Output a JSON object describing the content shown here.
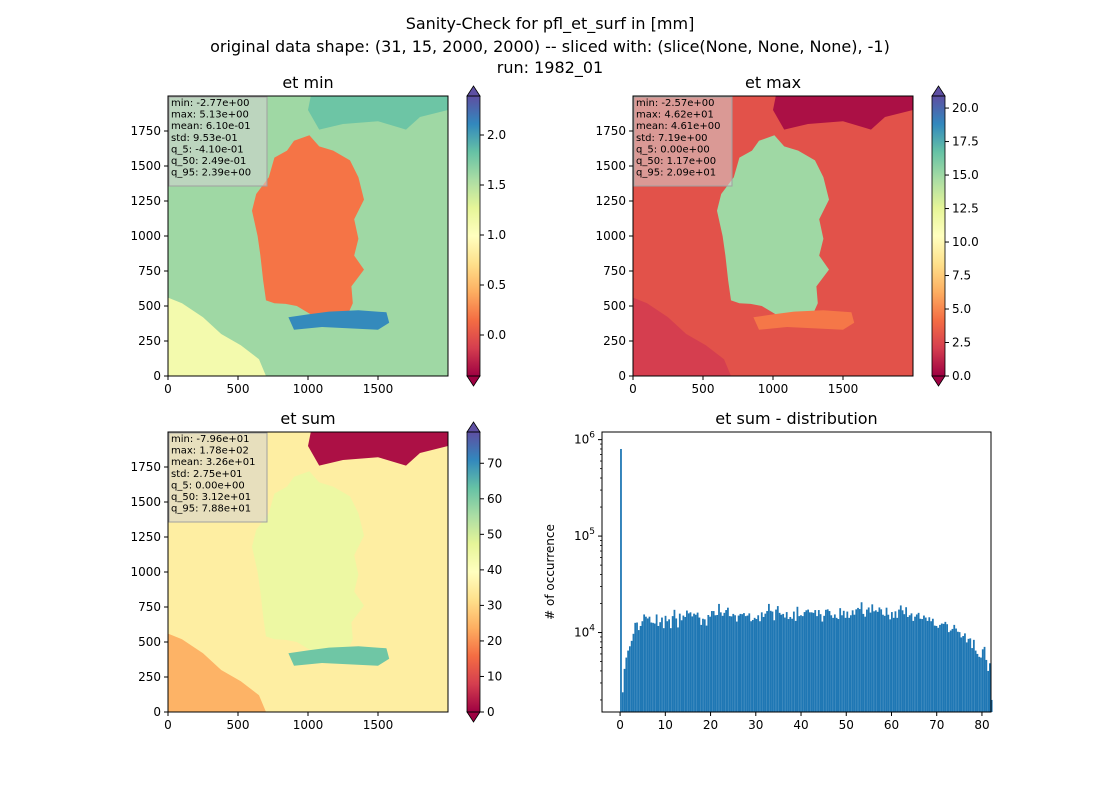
{
  "figure": {
    "title_lines": [
      "Sanity-Check for pfl_et_surf in [mm]",
      "original data shape: (31, 15, 2000, 2000) -- sliced with: (slice(None, None, None), -1)",
      "run: 1982_01"
    ]
  },
  "chart_data": [
    {
      "type": "heatmap",
      "title": "et min",
      "colormap": "Spectral",
      "xlim": [
        0,
        2000
      ],
      "ylim": [
        0,
        2000
      ],
      "xticks": [
        "0",
        "500",
        "1000",
        "1500"
      ],
      "yticks": [
        "0",
        "250",
        "500",
        "750",
        "1000",
        "1250",
        "1500",
        "1750"
      ],
      "colorbar": {
        "min": -0.41,
        "max": 2.39,
        "ticks": [
          "0.0",
          "0.5",
          "1.0",
          "1.5",
          "2.0"
        ],
        "tick_values": [
          0.0,
          0.5,
          1.0,
          1.5,
          2.0
        ],
        "extend": "both"
      },
      "stats": [
        "min: -2.77e+00",
        "max: 5.13e+00",
        "mean: 6.10e-01",
        "std: 9.53e-01",
        "q_5: -4.10e-01",
        "q_50: 2.49e-01",
        "q_95: 2.39e+00"
      ],
      "regions": {
        "land": 0.18,
        "sea": 2.1,
        "north_land": 1.8,
        "outside": 1.6
      }
    },
    {
      "type": "heatmap",
      "title": "et max",
      "colormap": "Spectral",
      "xlim": [
        0,
        2000
      ],
      "ylim": [
        0,
        2000
      ],
      "xticks": [
        "0",
        "500",
        "1000",
        "1500"
      ],
      "yticks": [
        "0",
        "250",
        "500",
        "750",
        "1000",
        "1250",
        "1500",
        "1750"
      ],
      "colorbar": {
        "min": 0.0,
        "max": 20.9,
        "ticks": [
          "0.0",
          "2.5",
          "5.0",
          "7.5",
          "10.0",
          "12.5",
          "15.0",
          "17.5",
          "20.0"
        ],
        "tick_values": [
          0.0,
          2.5,
          5.0,
          7.5,
          10.0,
          12.5,
          15.0,
          17.5,
          20.0
        ],
        "extend": "both"
      },
      "stats": [
        "min: -2.57e+00",
        "max: 4.62e+01",
        "mean: 4.61e+00",
        "std: 7.19e+00",
        "q_5: 0.00e+00",
        "q_50: 1.17e+00",
        "q_95: 2.09e+01"
      ],
      "regions": {
        "land": 15.0,
        "sea": 4.5,
        "north_land": 0.5,
        "outside": 3.0
      }
    },
    {
      "type": "heatmap",
      "title": "et sum",
      "colormap": "Spectral",
      "xlim": [
        0,
        2000
      ],
      "ylim": [
        0,
        2000
      ],
      "xticks": [
        "0",
        "500",
        "1000",
        "1500"
      ],
      "yticks": [
        "0",
        "250",
        "500",
        "750",
        "1000",
        "1250",
        "1500",
        "1750"
      ],
      "colorbar": {
        "min": 0.0,
        "max": 78.8,
        "ticks": [
          "0",
          "10",
          "20",
          "30",
          "40",
          "50",
          "60",
          "70"
        ],
        "tick_values": [
          0,
          10,
          20,
          30,
          40,
          50,
          60,
          70
        ],
        "extend": "both"
      },
      "stats": [
        "min: -7.96e+01",
        "max: 1.78e+02",
        "mean: 3.26e+01",
        "std: 2.75e+01",
        "q_5: 0.00e+00",
        "q_50: 3.12e+01",
        "q_95: 7.88e+01"
      ],
      "regions": {
        "land": 45.0,
        "sea": 62.0,
        "north_land": 2.0,
        "outside": 35.0
      }
    },
    {
      "type": "bar",
      "title": "et sum - distribution",
      "xlabel": "",
      "ylabel": "# of occurrence",
      "yscale": "log",
      "xlim": [
        -4,
        82
      ],
      "ylim": [
        1500,
        1200000
      ],
      "xticks": [
        0,
        10,
        20,
        30,
        40,
        50,
        60,
        70,
        80
      ],
      "yticks": [
        {
          "value": 10000,
          "label": "10^4"
        },
        {
          "value": 100000,
          "label": "10^5"
        },
        {
          "value": 1000000,
          "label": "10^6"
        }
      ],
      "bar_color": "#1f77b4",
      "bin_width": 0.394,
      "x_start": 0,
      "values": [
        800000,
        2400,
        4200,
        5500,
        6500,
        7200,
        8200,
        9700,
        12600,
        12700,
        10600,
        11700,
        13100,
        15400,
        14600,
        14000,
        14600,
        12700,
        12600,
        12400,
        15400,
        11700,
        12800,
        14300,
        11100,
        14900,
        13100,
        13700,
        11100,
        14800,
        17200,
        14000,
        11300,
        15700,
        13400,
        15000,
        14500,
        16900,
        15800,
        16200,
        14700,
        15700,
        15300,
        16100,
        14300,
        12000,
        13900,
        13700,
        11800,
        15200,
        14600,
        16700,
        16700,
        15100,
        15200,
        19800,
        16200,
        14900,
        16000,
        17100,
        18100,
        14800,
        14700,
        15600,
        15100,
        13000,
        15000,
        15600,
        15500,
        15900,
        14800,
        15000,
        15800,
        13100,
        13500,
        14200,
        13800,
        15100,
        13100,
        16200,
        14500,
        15700,
        16700,
        19800,
        16800,
        16500,
        13400,
        17300,
        18800,
        16000,
        15300,
        15600,
        14300,
        16300,
        13800,
        14500,
        13900,
        16500,
        13200,
        18500,
        14800,
        15100,
        14800,
        16300,
        17000,
        17300,
        16200,
        16200,
        16000,
        17100,
        14800,
        17100,
        15500,
        13000,
        14900,
        17200,
        17400,
        16700,
        15100,
        14200,
        15400,
        14200,
        13800,
        17900,
        15100,
        16800,
        14200,
        16500,
        14200,
        15100,
        17000,
        15300,
        17400,
        18000,
        17500,
        20600,
        15600,
        14600,
        17300,
        18200,
        16100,
        19600,
        16600,
        17000,
        16400,
        18200,
        17400,
        15300,
        14900,
        18100,
        15300,
        13700,
        16300,
        14200,
        16600,
        14200,
        17300,
        19100,
        17000,
        15500,
        18300,
        14500,
        15100,
        15800,
        13200,
        14600,
        15400,
        16000,
        13900,
        13800,
        15000,
        14300,
        13200,
        14400,
        13100,
        13900,
        11800,
        11700,
        11200,
        12000,
        12400,
        12300,
        12900,
        12200,
        10100,
        10500,
        10900,
        12000,
        11000,
        10200,
        10100,
        8900,
        9200,
        9800,
        7900,
        8600,
        8700,
        6900,
        8400,
        6500,
        6000,
        5600,
        5500,
        6700,
        7100,
        5200,
        4000,
        4800,
        2000
      ]
    }
  ]
}
